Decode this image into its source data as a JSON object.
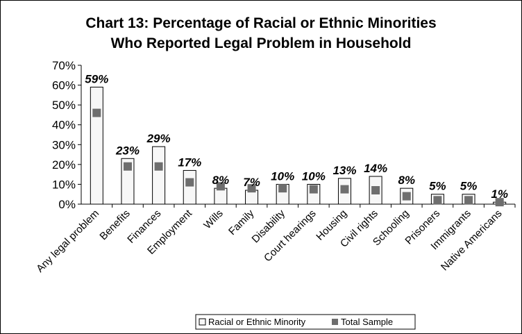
{
  "chart_data": {
    "type": "bar",
    "title_line1": "Chart 13:  Percentage of Racial or Ethnic Minorities",
    "title_line2": "Who Reported Legal Problem in Household",
    "categories": [
      "Any legal problem",
      "Benefits",
      "Finances",
      "Employment",
      "Wills",
      "Family",
      "Disability",
      "Court hearings",
      "Housing",
      "Civil rights",
      "Schooling",
      "Prisoners",
      "Immigrants",
      "Native Americans"
    ],
    "series": [
      {
        "name": "Racial or Ethnic Minority",
        "values": [
          59,
          23,
          29,
          17,
          8,
          7,
          10,
          10,
          13,
          14,
          8,
          5,
          5,
          1
        ],
        "color": "#f7f7f7"
      },
      {
        "name": "Total Sample",
        "values": [
          46,
          19,
          19,
          11,
          9,
          8,
          8,
          7.5,
          7.5,
          7,
          4,
          2,
          2,
          1
        ],
        "color": "#6e6e6e"
      }
    ],
    "data_labels": [
      "59%",
      "23%",
      "29%",
      "17%",
      "8%",
      "7%",
      "10%",
      "10%",
      "13%",
      "14%",
      "8%",
      "5%",
      "5%",
      "1%"
    ],
    "ytick_labels": [
      "0%",
      "10%",
      "20%",
      "30%",
      "40%",
      "50%",
      "60%",
      "70%"
    ],
    "ylim": [
      0,
      70
    ],
    "grid": false,
    "legend_position": "bottom",
    "xlabel": "",
    "ylabel": ""
  }
}
